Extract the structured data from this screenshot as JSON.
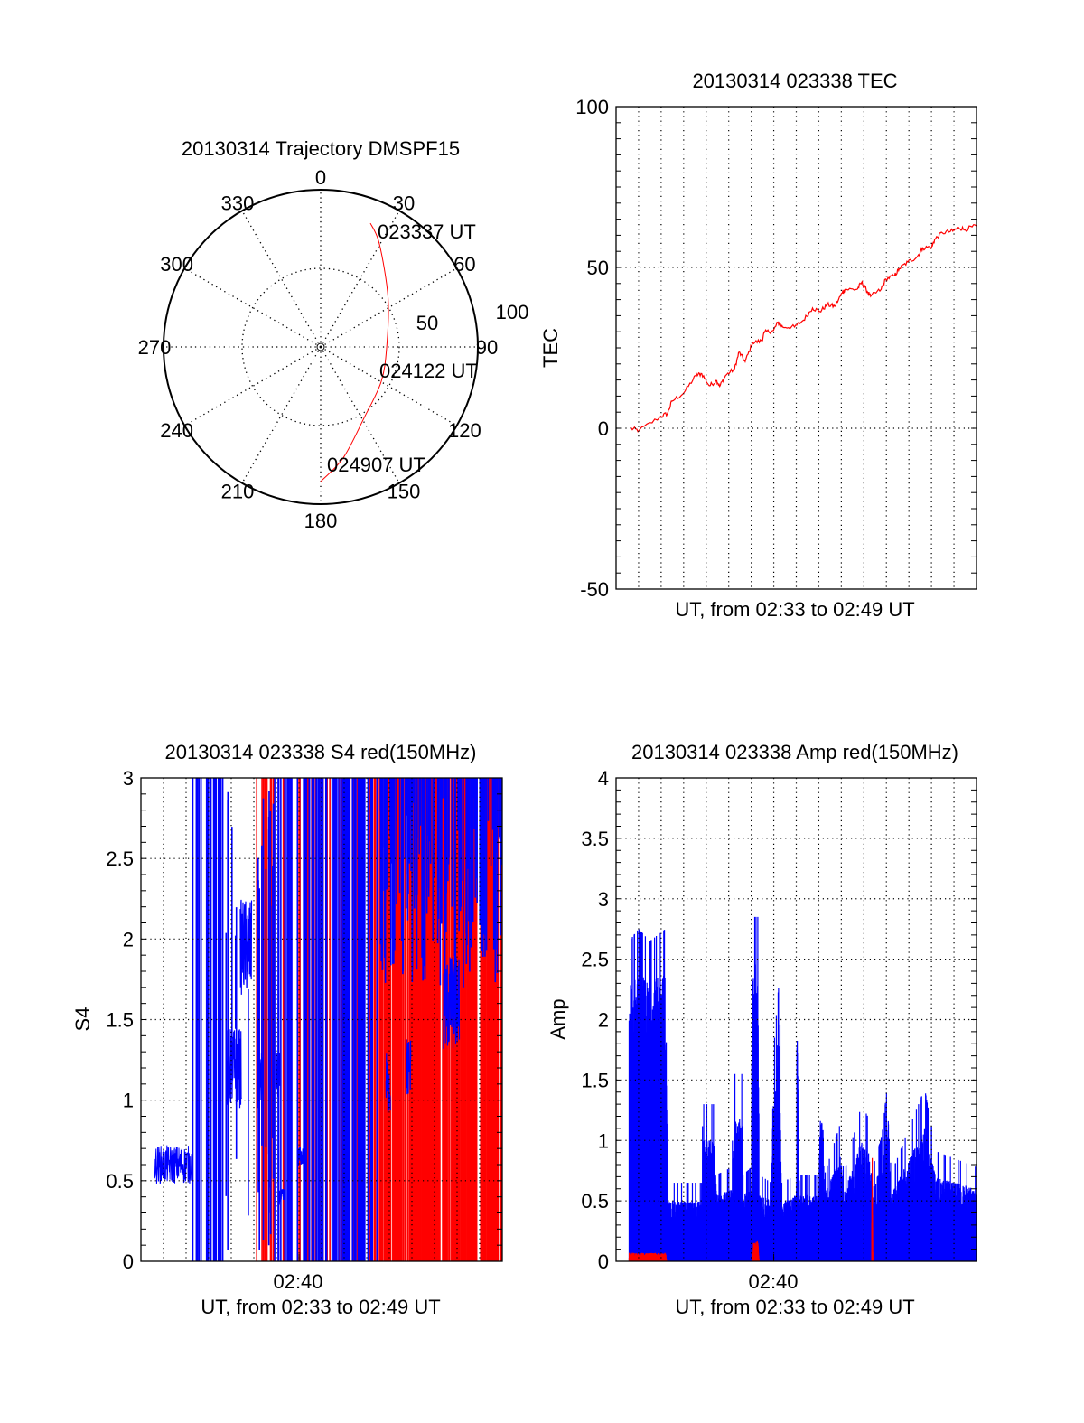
{
  "chart_data": [
    {
      "type": "polar",
      "title": "20130314 Trajectory DMSPF15",
      "angle_labels": [
        "0",
        "30",
        "60",
        "90",
        "120",
        "150",
        "180",
        "210",
        "240",
        "270",
        "300",
        "330"
      ],
      "radial_labels": [
        "50",
        "100"
      ],
      "rlim": [
        0,
        100
      ],
      "trajectory": {
        "color": "#ff0000",
        "points": [
          [
            21.9,
            84.8
          ],
          [
            29.7,
            75.4
          ],
          [
            54,
            53
          ],
          [
            90,
            42
          ],
          [
            120,
            44.4
          ],
          [
            148.7,
            53
          ],
          [
            168.5,
            72
          ],
          [
            180,
            85.6
          ]
        ]
      },
      "annotations": [
        {
          "text": "023337 UT",
          "az": 21.9,
          "r": 84.8
        },
        {
          "text": "024122 UT",
          "az": 90,
          "r": 42
        },
        {
          "text": "024907 UT",
          "az": 180,
          "r": 85.6
        }
      ]
    },
    {
      "type": "line",
      "title": "20130314 023338 TEC",
      "xlabel": "UT, from 02:33 to 02:49 UT",
      "ylabel": "TEC",
      "xlim_minutes": [
        0,
        16
      ],
      "ylim": [
        -50,
        100
      ],
      "yticks": [
        "-50",
        "0",
        "50",
        "100"
      ],
      "ytick_values": [
        -50,
        0,
        50,
        100
      ],
      "y_minor_step": 5,
      "grid": true,
      "series": [
        {
          "name": "TEC",
          "color": "#ff0000",
          "x": [
            0.62,
            1.02,
            1.95,
            2.28,
            2.48,
            3.01,
            3.54,
            3.8,
            4.14,
            4.47,
            4.6,
            4.86,
            5.26,
            5.46,
            5.73,
            6.06,
            6.46,
            6.59,
            6.99,
            7.19,
            7.39,
            7.92,
            8.32,
            8.72,
            9.05,
            9.38,
            9.71,
            10.04,
            10.17,
            10.7,
            10.9,
            11.1,
            11.3,
            11.77,
            11.97,
            12.37,
            12.57,
            12.96,
            13.36,
            13.62,
            14.02,
            14.15,
            14.48,
            14.95,
            15.21,
            15.48,
            16
          ],
          "y": [
            0,
            -0.7,
            3.5,
            4.6,
            8.4,
            11,
            16.4,
            17,
            13.2,
            14.8,
            13,
            16.4,
            18.5,
            23.7,
            20.7,
            26.6,
            27.2,
            29.8,
            30.4,
            33,
            31.5,
            31.5,
            33.6,
            37.4,
            36.3,
            38.4,
            37.9,
            42.1,
            43.2,
            43.2,
            45.3,
            43.2,
            41,
            43.2,
            46.4,
            47.5,
            49.6,
            51.7,
            53.3,
            56,
            56.5,
            58.7,
            60.8,
            61.3,
            62.4,
            61.8,
            62.9
          ]
        }
      ]
    },
    {
      "type": "line",
      "title": "20130314 023338 S4 red(150MHz)",
      "xlabel": "UT, from 02:33 to 02:49 UT",
      "xtick_label": "02:40",
      "xtick_value": 7,
      "ylabel": "S4",
      "xlim_minutes": [
        0,
        16
      ],
      "ylim": [
        0,
        3
      ],
      "yticks": [
        "0",
        "0.5",
        "1",
        "1.5",
        "2",
        "2.5",
        "3"
      ],
      "ytick_values": [
        0,
        0.5,
        1,
        1.5,
        2,
        2.5,
        3
      ],
      "y_minor_step": 0.1,
      "grid": true,
      "series": [
        {
          "name": "blue",
          "color": "#0000ff"
        },
        {
          "name": "red",
          "color": "#ff0000"
        }
      ],
      "baseline": {
        "start": 0.6,
        "end": 2.25,
        "mean": 0.6,
        "spread": 0.12,
        "color": "#0000ff"
      },
      "clusters": [
        [
          3.8,
          4.45,
          1.2,
          0.25
        ],
        [
          4.4,
          4.9,
          1.95,
          0.3
        ],
        [
          5.15,
          5.4,
          1.1,
          0.2
        ],
        [
          6.0,
          6.15,
          1.15,
          0.15
        ],
        [
          6.1,
          6.35,
          0.4,
          0.05
        ],
        [
          6.95,
          7.2,
          0.65,
          0.06
        ],
        [
          10.85,
          11.05,
          1.1,
          0.2
        ],
        [
          11.75,
          11.95,
          1.2,
          0.2
        ],
        [
          13.4,
          14.1,
          1.6,
          0.3
        ]
      ],
      "spikes": [
        {
          "start": 2.25,
          "end": 3.75,
          "color": "#0000ff",
          "count": 22,
          "low": [
            0,
            0
          ],
          "high": [
            3,
            3
          ]
        },
        {
          "start": 3.75,
          "end": 5.0,
          "color": "#0000ff",
          "count": 8,
          "low": [
            0,
            1.5
          ],
          "high": [
            1.6,
            3
          ]
        },
        {
          "start": 5.0,
          "end": 5.9,
          "color": "#ff0000",
          "count": 10,
          "low": [
            0,
            0
          ],
          "high": [
            3,
            3
          ]
        },
        {
          "start": 5.0,
          "end": 5.9,
          "color": "#0000ff",
          "count": 14,
          "low": [
            0,
            1
          ],
          "high": [
            2.2,
            3
          ]
        },
        {
          "start": 5.9,
          "end": 7.2,
          "color": "#0000ff",
          "count": 16,
          "low": [
            0,
            0
          ],
          "high": [
            3,
            3
          ]
        },
        {
          "start": 6.2,
          "end": 7.2,
          "color": "#ff0000",
          "count": 3,
          "low": [
            0,
            0
          ],
          "high": [
            3,
            3
          ]
        },
        {
          "start": 7.2,
          "end": 10.6,
          "color": "#ff0000",
          "count": 40,
          "low": [
            0,
            0
          ],
          "high": [
            3,
            3
          ]
        },
        {
          "start": 7.2,
          "end": 10.6,
          "color": "#0000ff",
          "count": 70,
          "low": [
            0,
            0
          ],
          "high": [
            3,
            3
          ]
        },
        {
          "start": 10.6,
          "end": 16,
          "color": "#ff0000",
          "count": 260,
          "low": [
            0,
            0
          ],
          "high": [
            3,
            3
          ]
        },
        {
          "start": 10.6,
          "end": 16,
          "color": "#0000ff",
          "count": 160,
          "low": [
            1.7,
            2.9
          ],
          "high": [
            3,
            3
          ]
        }
      ]
    },
    {
      "type": "area",
      "title": "20130314 023338 Amp red(150MHz)",
      "xlabel": "UT, from 02:33 to 02:49 UT",
      "xtick_label": "02:40",
      "xtick_value": 7,
      "ylabel": "Amp",
      "xlim_minutes": [
        0,
        16
      ],
      "ylim": [
        0,
        4
      ],
      "yticks": [
        "0",
        "0.5",
        "1",
        "1.5",
        "2",
        "2.5",
        "3",
        "3.5",
        "4"
      ],
      "ytick_values": [
        0,
        0.5,
        1,
        1.5,
        2,
        2.5,
        3,
        3.5,
        4
      ],
      "y_minor_step": 0.1,
      "grid": true,
      "series": [
        {
          "name": "blue",
          "color": "#0000ff",
          "envelope": [
            [
              0.58,
              2.3
            ],
            [
              1.0,
              2.4
            ],
            [
              1.5,
              2.3
            ],
            [
              2.2,
              2.4
            ],
            [
              2.3,
              0.5
            ],
            [
              3.0,
              0.5
            ],
            [
              3.8,
              0.5
            ],
            [
              3.85,
              1.0
            ],
            [
              4.4,
              1.0
            ],
            [
              4.45,
              0.55
            ],
            [
              5.15,
              0.6
            ],
            [
              5.2,
              1.2
            ],
            [
              5.6,
              1.2
            ],
            [
              5.65,
              0.55
            ],
            [
              6.0,
              0.6
            ],
            [
              6.05,
              2.5
            ],
            [
              6.3,
              2.5
            ],
            [
              6.35,
              0.55
            ],
            [
              6.9,
              0.5
            ],
            [
              6.95,
              1.3
            ],
            [
              7.25,
              2.0
            ],
            [
              7.35,
              0.5
            ],
            [
              8.0,
              0.55
            ],
            [
              8.05,
              2.1
            ],
            [
              8.1,
              1.2
            ],
            [
              8.15,
              0.55
            ],
            [
              9.0,
              0.55
            ],
            [
              9.05,
              1.2
            ],
            [
              9.2,
              1.1
            ],
            [
              9.25,
              0.55
            ],
            [
              10.0,
              0.9
            ],
            [
              10.1,
              0.55
            ],
            [
              10.9,
              1.0
            ],
            [
              11.25,
              0.9
            ],
            [
              11.3,
              0.55
            ],
            [
              11.8,
              0.8
            ],
            [
              12.1,
              1.2
            ],
            [
              12.2,
              0.55
            ],
            [
              13.7,
              1.1
            ],
            [
              14.2,
              0.7
            ],
            [
              16,
              0.6
            ]
          ]
        },
        {
          "name": "red",
          "color": "#ff0000",
          "envelope": [
            [
              0.58,
              0.07
            ],
            [
              2.2,
              0.07
            ],
            [
              2.25,
              0
            ],
            [
              6.05,
              0
            ],
            [
              6.1,
              0.17
            ],
            [
              6.3,
              0.17
            ],
            [
              6.35,
              0
            ],
            [
              11.35,
              0
            ],
            [
              11.37,
              1.07
            ],
            [
              11.4,
              0
            ],
            [
              16,
              0
            ]
          ]
        }
      ]
    }
  ]
}
